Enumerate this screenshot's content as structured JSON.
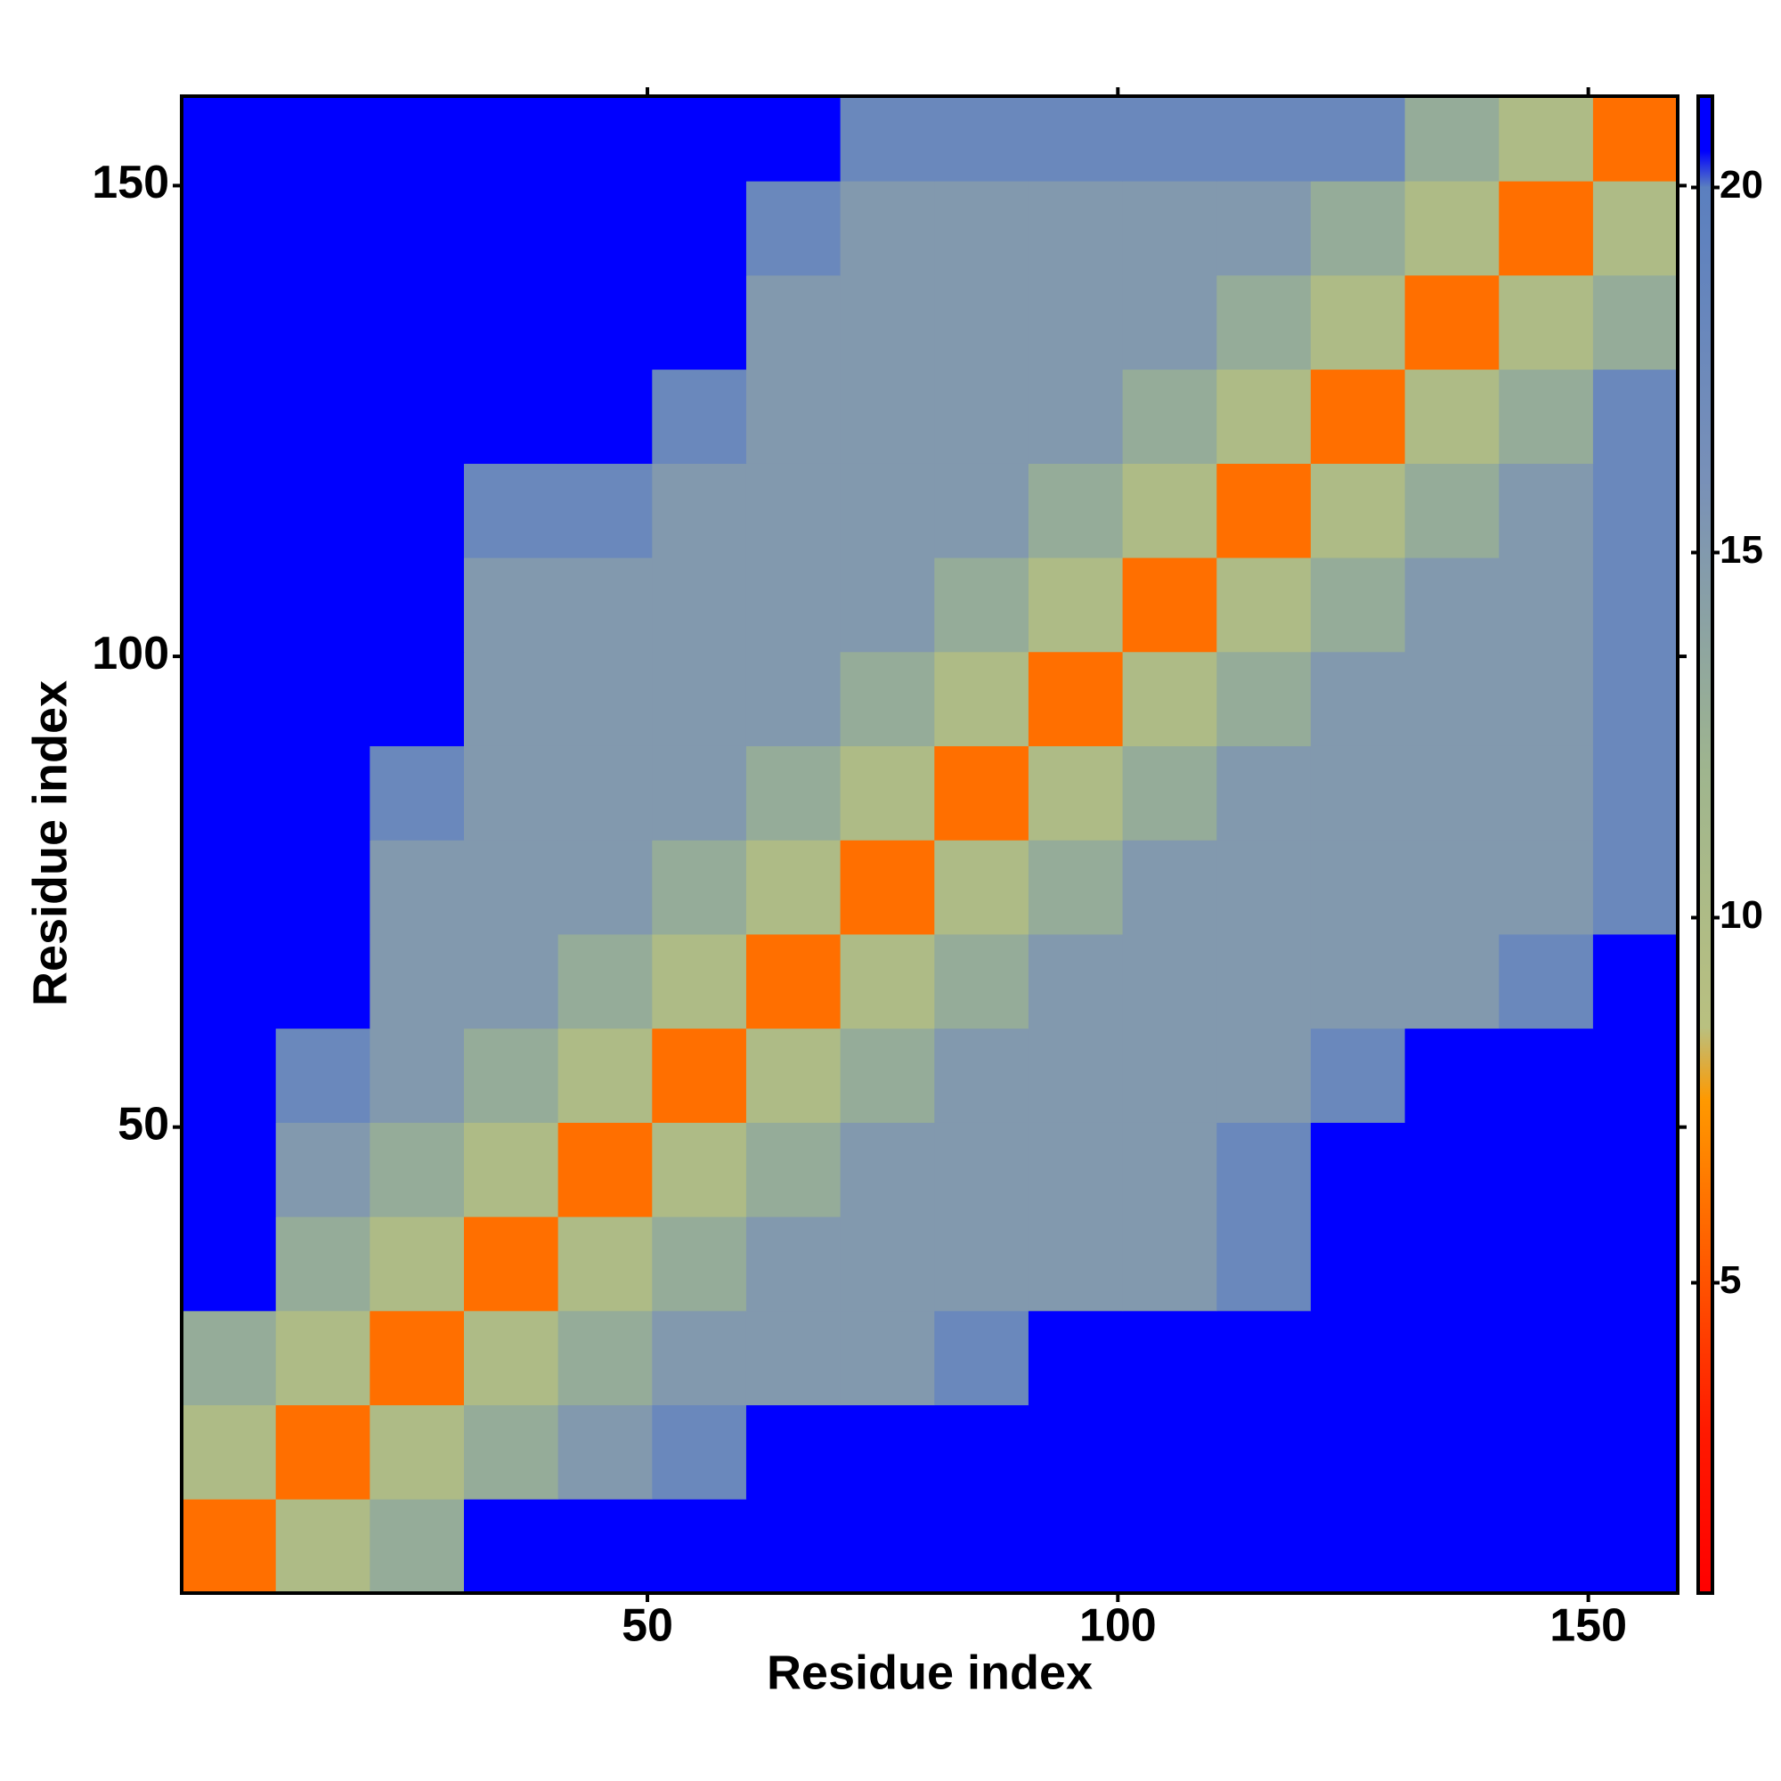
{
  "chart_data": {
    "type": "heatmap",
    "xlabel": "Residue index",
    "ylabel": "Residue index",
    "x_edges": [
      0.5,
      10.5,
      20.5,
      30.5,
      40.5,
      50.5,
      60.5,
      70.5,
      80.5,
      90.5,
      100.5,
      110.5,
      120.5,
      130.5,
      140.5,
      150.5,
      159.5
    ],
    "y_edges": [
      0.5,
      10.5,
      20.5,
      30.5,
      40.5,
      50.5,
      60.5,
      70.5,
      80.5,
      90.5,
      100.5,
      110.5,
      120.5,
      130.5,
      140.5,
      150.5,
      159.5
    ],
    "z": [
      [
        6,
        10,
        13,
        21,
        21,
        21,
        21,
        21,
        21,
        21,
        21,
        21,
        21,
        21,
        21,
        21
      ],
      [
        10,
        6,
        10,
        13,
        15,
        18,
        21,
        21,
        21,
        21,
        21,
        21,
        21,
        21,
        21,
        21
      ],
      [
        13,
        10,
        6,
        10,
        13,
        15,
        15,
        15,
        18,
        21,
        21,
        21,
        21,
        21,
        21,
        21
      ],
      [
        21,
        13,
        10,
        6,
        10,
        13,
        15,
        15,
        15,
        15,
        15,
        18,
        21,
        21,
        21,
        21
      ],
      [
        21,
        15,
        13,
        10,
        6,
        10,
        13,
        15,
        15,
        15,
        15,
        18,
        21,
        21,
        21,
        21
      ],
      [
        21,
        18,
        15,
        13,
        10,
        6,
        10,
        13,
        15,
        15,
        15,
        15,
        18,
        21,
        21,
        21
      ],
      [
        21,
        21,
        15,
        15,
        13,
        10,
        6,
        10,
        13,
        15,
        15,
        15,
        15,
        15,
        18,
        21
      ],
      [
        21,
        21,
        15,
        15,
        15,
        13,
        10,
        6,
        10,
        13,
        15,
        15,
        15,
        15,
        15,
        18
      ],
      [
        21,
        21,
        18,
        15,
        15,
        15,
        13,
        10,
        6,
        10,
        13,
        15,
        15,
        15,
        15,
        18
      ],
      [
        21,
        21,
        21,
        15,
        15,
        15,
        15,
        13,
        10,
        6,
        10,
        13,
        15,
        15,
        15,
        18
      ],
      [
        21,
        21,
        21,
        15,
        15,
        15,
        15,
        15,
        13,
        10,
        6,
        10,
        13,
        15,
        15,
        18
      ],
      [
        21,
        21,
        21,
        18,
        18,
        15,
        15,
        15,
        15,
        13,
        10,
        6,
        10,
        13,
        15,
        18
      ],
      [
        21,
        21,
        21,
        21,
        21,
        18,
        15,
        15,
        15,
        15,
        13,
        10,
        6,
        10,
        13,
        18
      ],
      [
        21,
        21,
        21,
        21,
        21,
        21,
        15,
        15,
        15,
        15,
        15,
        13,
        10,
        6,
        10,
        13
      ],
      [
        21,
        21,
        21,
        21,
        21,
        21,
        18,
        15,
        15,
        15,
        15,
        15,
        13,
        10,
        6,
        10
      ],
      [
        21,
        21,
        21,
        21,
        21,
        21,
        21,
        18,
        18,
        18,
        18,
        18,
        18,
        13,
        10,
        6
      ]
    ],
    "xlim": [
      0.5,
      159.5
    ],
    "ylim": [
      0.5,
      159.5
    ],
    "xticks": [
      50,
      100,
      150
    ],
    "yticks": [
      50,
      100,
      150
    ],
    "zlim": [
      0.75,
      21.25
    ],
    "zticks": [
      5,
      10,
      15,
      20
    ],
    "colorscale": [
      {
        "value": 0.75,
        "color": "#ff0000"
      },
      {
        "value": 3,
        "color": "#ff1a00"
      },
      {
        "value": 7.5,
        "color": "#ff9900"
      },
      {
        "value": 8.5,
        "color": "#b9c080"
      },
      {
        "value": 12,
        "color": "#9fb58e"
      },
      {
        "value": 16,
        "color": "#7890b8"
      },
      {
        "value": 20,
        "color": "#5b7fbf"
      },
      {
        "value": 20.5,
        "color": "#0000ff"
      },
      {
        "value": 21.25,
        "color": "#0000ff"
      }
    ]
  }
}
